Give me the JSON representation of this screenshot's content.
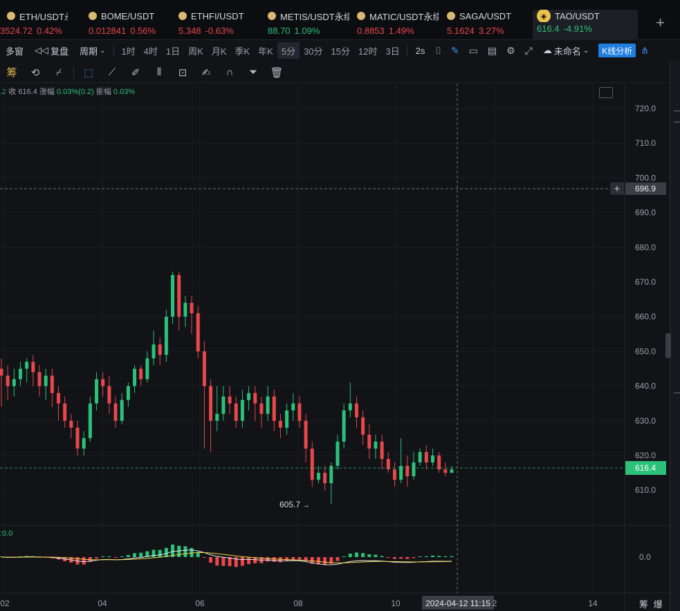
{
  "top_fragment": "",
  "tickers": [
    {
      "symbol": "ETH/USDT永续",
      "price": "3524.72",
      "change": "0.42%",
      "dir": "down",
      "left": -20
    },
    {
      "symbol": "BOME/USDT",
      "price": "0.012841",
      "change": "0.56%",
      "dir": "down",
      "left": 128
    },
    {
      "symbol": "ETHFI/USDT",
      "price": "5.348",
      "change": "-0.63%",
      "dir": "down",
      "left": 258
    },
    {
      "symbol": "METIS/USDT永续",
      "price": "88.70",
      "change": "1.09%",
      "dir": "up",
      "left": 387
    },
    {
      "symbol": "MATIC/USDT永续",
      "price": "0.8853",
      "change": "1.49%",
      "dir": "down",
      "left": 516
    },
    {
      "symbol": "SAGA/USDT",
      "price": "5.1624",
      "change": "3.27%",
      "dir": "down",
      "left": 646
    },
    {
      "symbol": "TAO/USDT",
      "price": "616.4",
      "change": "-4.91%",
      "dir": "up",
      "left": 770
    }
  ],
  "toolbar": {
    "multi_window": "多窗",
    "replay": "复盘",
    "period": "周期",
    "intervals": [
      "1时",
      "4时",
      "1日",
      "周K",
      "月K",
      "季K",
      "年K",
      "5分",
      "30分",
      "15分",
      "12时",
      "3日"
    ],
    "selected_interval": "5分",
    "refresh": "2s",
    "unnamed": "未命名",
    "k_analysis": "K线分析"
  },
  "drawbar": {
    "chip_label": "筹"
  },
  "ohlc": {
    "prefix": ".2",
    "close_label": "收",
    "close": "616.4",
    "change_label": "涨幅",
    "change": "0.03%(0.2)",
    "amp_label": "振幅",
    "amp": "0.03%"
  },
  "macd_label": ":0.0",
  "footer": "筹 爆",
  "colors": {
    "up": "#2cc17a",
    "down": "#e8474b",
    "bg": "#111317",
    "accent": "#1f7fe0"
  },
  "chart_data": {
    "type": "candlestick",
    "ylim": [
      602,
      724
    ],
    "y_ticks": [
      "720.0",
      "710.0",
      "700.0",
      "690.0",
      "680.0",
      "670.0",
      "660.0",
      "650.0",
      "640.0",
      "630.0",
      "620.0",
      "610.0"
    ],
    "x_ticks": [
      "02",
      "04",
      "06",
      "08",
      "10",
      "2",
      "14"
    ],
    "crosshair_price": "696.9",
    "crosshair_time": "2024-04-12 11:15",
    "last_price": "616.4",
    "low_marker": "605.7",
    "macd_tick": "0.0",
    "candles": [
      [
        645,
        643,
        648,
        634
      ],
      [
        643,
        640,
        646,
        636
      ],
      [
        640,
        642,
        645,
        637
      ],
      [
        642,
        645,
        647,
        640
      ],
      [
        645,
        647,
        648,
        641
      ],
      [
        647,
        644,
        649,
        640
      ],
      [
        644,
        640,
        646,
        637
      ],
      [
        640,
        643,
        645,
        636
      ],
      [
        643,
        638,
        645,
        634
      ],
      [
        638,
        635,
        640,
        630
      ],
      [
        635,
        630,
        637,
        628
      ],
      [
        630,
        628,
        632,
        625
      ],
      [
        628,
        622,
        630,
        620
      ],
      [
        622,
        625,
        627,
        620
      ],
      [
        625,
        635,
        637,
        624
      ],
      [
        635,
        642,
        644,
        633
      ],
      [
        642,
        640,
        644,
        637
      ],
      [
        640,
        635,
        643,
        632
      ],
      [
        635,
        630,
        637,
        628
      ],
      [
        630,
        636,
        638,
        629
      ],
      [
        636,
        640,
        641,
        634
      ],
      [
        640,
        645,
        646,
        638
      ],
      [
        645,
        642,
        646,
        640
      ],
      [
        642,
        648,
        650,
        641
      ],
      [
        648,
        652,
        656,
        646
      ],
      [
        652,
        649,
        654,
        646
      ],
      [
        649,
        660,
        662,
        647
      ],
      [
        660,
        672,
        673,
        658
      ],
      [
        672,
        660,
        673,
        656
      ],
      [
        660,
        664,
        666,
        657
      ],
      [
        664,
        661,
        666,
        655
      ],
      [
        661,
        650,
        663,
        648
      ],
      [
        650,
        640,
        653,
        622
      ],
      [
        640,
        630,
        642,
        621
      ],
      [
        630,
        632,
        640,
        627
      ],
      [
        632,
        637,
        640,
        630
      ],
      [
        637,
        635,
        640,
        632
      ],
      [
        635,
        630,
        637,
        628
      ],
      [
        630,
        636,
        639,
        628
      ],
      [
        636,
        638,
        640,
        633
      ],
      [
        638,
        635,
        640,
        630
      ],
      [
        635,
        632,
        637,
        628
      ],
      [
        632,
        637,
        640,
        630
      ],
      [
        637,
        630,
        639,
        627
      ],
      [
        630,
        628,
        632,
        625
      ],
      [
        628,
        633,
        635,
        626
      ],
      [
        633,
        635,
        638,
        630
      ],
      [
        635,
        630,
        637,
        628
      ],
      [
        630,
        622,
        632,
        618
      ],
      [
        622,
        613,
        624,
        611
      ],
      [
        613,
        615,
        617,
        612
      ],
      [
        615,
        612,
        617,
        610
      ],
      [
        612,
        617,
        618,
        606
      ],
      [
        617,
        624,
        626,
        616
      ],
      [
        624,
        633,
        635,
        622
      ],
      [
        633,
        635,
        641,
        631
      ],
      [
        635,
        631,
        637,
        628
      ],
      [
        631,
        626,
        633,
        623
      ],
      [
        626,
        622,
        629,
        619
      ],
      [
        622,
        624,
        626,
        619
      ],
      [
        624,
        619,
        626,
        616
      ],
      [
        619,
        616,
        621,
        615
      ],
      [
        616,
        613,
        618,
        611
      ],
      [
        613,
        617,
        625,
        612
      ],
      [
        617,
        614,
        620,
        611
      ],
      [
        614,
        618,
        621,
        613
      ],
      [
        618,
        621,
        622,
        617
      ],
      [
        621,
        618,
        623,
        616
      ],
      [
        618,
        620,
        622,
        617
      ],
      [
        620,
        616,
        621,
        615
      ],
      [
        616,
        615,
        618,
        614
      ],
      [
        615,
        616,
        617,
        615
      ]
    ]
  }
}
